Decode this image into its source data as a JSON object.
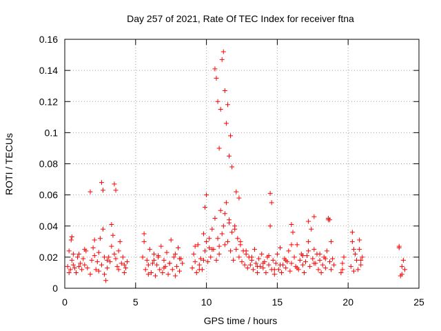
{
  "chart_data": {
    "type": "scatter",
    "title": "Day 257 of 2021, Rate Of TEC Index for receiver ftna",
    "xlabel": "GPS time / hours",
    "ylabel": "ROTI / TECUs",
    "xlim": [
      0,
      25
    ],
    "ylim": [
      0,
      0.16
    ],
    "xticks": [
      0,
      5,
      10,
      15,
      20,
      25
    ],
    "yticks": [
      0,
      0.02,
      0.04,
      0.06,
      0.08,
      0.1,
      0.12,
      0.14,
      0.16
    ],
    "xtick_labels": [
      "0",
      "5",
      "10",
      "15",
      "20",
      "25"
    ],
    "ytick_labels": [
      "0",
      "0.02",
      "0.04",
      "0.06",
      "0.08",
      "0.1",
      "0.12",
      "0.14",
      "0.16"
    ],
    "grid": true,
    "marker": "+",
    "marker_color": "#ff0000",
    "series": [
      {
        "x": [
          0.2,
          0.3,
          0.4,
          0.45,
          0.5,
          0.6,
          0.7,
          0.8,
          0.9,
          1.0,
          1.1,
          1.2,
          1.3,
          1.4,
          1.5,
          1.6,
          1.8,
          1.9,
          2.0,
          2.1,
          2.2,
          2.3,
          2.4,
          2.5,
          2.6,
          2.7,
          2.8,
          2.9,
          3.0,
          3.1,
          3.2,
          3.3,
          3.4,
          3.5,
          3.6,
          3.7,
          3.8,
          3.9,
          4.0,
          4.1,
          4.2,
          4.3,
          4.4,
          5.5,
          5.6,
          5.7,
          5.8,
          5.9,
          6.0,
          6.1,
          6.2,
          6.3,
          6.4,
          6.5,
          6.6,
          6.7,
          6.8,
          6.9,
          7.0,
          7.1,
          7.2,
          7.3,
          7.4,
          7.5,
          7.6,
          7.7,
          7.8,
          7.9,
          8.0,
          8.1,
          8.2,
          8.3,
          9.0,
          9.1,
          9.2,
          9.3,
          9.4,
          9.5,
          9.6,
          9.7,
          9.8,
          9.9,
          10.0,
          10.1,
          10.2,
          10.3,
          10.4,
          10.5,
          10.6,
          10.7,
          10.8,
          10.9,
          11.0,
          11.1,
          11.2,
          11.3,
          11.4,
          11.5,
          11.6,
          11.7,
          11.8,
          11.9,
          12.0,
          12.1,
          12.2,
          12.3,
          12.4,
          12.5,
          12.6,
          12.7,
          12.8,
          12.9,
          13.0,
          13.1,
          13.2,
          13.3,
          13.4,
          13.5,
          13.6,
          13.7,
          13.8,
          13.9,
          14.0,
          14.1,
          14.2,
          14.3,
          14.4,
          14.5,
          14.6,
          14.7,
          14.8,
          14.9,
          15.0,
          15.1,
          15.2,
          15.3,
          15.4,
          15.5,
          15.6,
          15.7,
          15.8,
          15.9,
          16.0,
          16.1,
          16.2,
          16.3,
          16.4,
          16.5,
          16.6,
          16.7,
          16.8,
          16.9,
          17.0,
          17.1,
          17.2,
          17.3,
          17.4,
          17.5,
          17.6,
          17.7,
          17.8,
          17.9,
          18.0,
          18.1,
          18.2,
          18.3,
          18.4,
          18.5,
          18.6,
          18.7,
          18.8,
          18.9,
          19.0,
          19.5,
          19.6,
          19.7,
          20.2,
          20.3,
          20.4,
          20.5,
          20.6,
          20.7,
          20.8,
          20.9,
          21.0,
          23.6,
          23.7,
          23.8,
          23.9,
          24.0,
          0.5,
          1.8,
          2.6,
          2.7,
          3.5,
          3.6,
          9.9,
          10.0,
          10.6,
          10.7,
          10.8,
          10.9,
          11.0,
          11.1,
          11.2,
          11.3,
          11.4,
          11.5,
          11.6,
          11.7,
          11.8,
          12.1,
          12.3,
          14.5,
          14.6,
          16.0,
          17.2,
          17.6,
          18.6,
          18.7,
          20.3,
          20.8,
          23.6,
          0.3,
          0.6,
          1.0,
          1.4,
          2.1,
          2.4,
          2.8,
          3.0,
          3.3,
          3.8,
          4.2,
          5.6,
          5.9,
          6.3,
          6.6,
          7.0,
          7.4,
          7.8,
          8.1,
          9.2,
          9.5,
          9.8,
          10.2,
          10.4,
          10.9,
          11.3,
          11.6,
          12.0,
          12.4,
          12.8,
          13.2,
          13.6,
          14.0,
          14.4,
          14.8,
          15.2,
          15.6,
          16.0,
          16.4,
          16.8,
          17.2,
          17.6,
          18.0,
          18.4,
          18.8,
          19.6,
          20.4,
          20.9,
          23.8
        ],
        "y": [
          0.014,
          0.024,
          0.012,
          0.031,
          0.018,
          0.015,
          0.013,
          0.01,
          0.02,
          0.022,
          0.016,
          0.012,
          0.019,
          0.015,
          0.024,
          0.013,
          0.009,
          0.018,
          0.026,
          0.021,
          0.012,
          0.017,
          0.023,
          0.032,
          0.015,
          0.038,
          0.009,
          0.005,
          0.013,
          0.02,
          0.017,
          0.027,
          0.034,
          0.022,
          0.019,
          0.014,
          0.012,
          0.03,
          0.016,
          0.02,
          0.01,
          0.013,
          0.017,
          0.02,
          0.035,
          0.012,
          0.018,
          0.015,
          0.025,
          0.01,
          0.016,
          0.022,
          0.008,
          0.015,
          0.02,
          0.012,
          0.027,
          0.01,
          0.018,
          0.014,
          0.023,
          0.009,
          0.016,
          0.031,
          0.012,
          0.02,
          0.008,
          0.014,
          0.026,
          0.011,
          0.019,
          0.016,
          0.013,
          0.022,
          0.017,
          0.01,
          0.028,
          0.015,
          0.019,
          0.012,
          0.035,
          0.024,
          0.03,
          0.017,
          0.026,
          0.02,
          0.038,
          0.025,
          0.045,
          0.018,
          0.032,
          0.022,
          0.05,
          0.035,
          0.04,
          0.028,
          0.055,
          0.03,
          0.044,
          0.024,
          0.036,
          0.018,
          0.04,
          0.025,
          0.032,
          0.02,
          0.028,
          0.017,
          0.024,
          0.015,
          0.022,
          0.013,
          0.02,
          0.015,
          0.018,
          0.012,
          0.025,
          0.016,
          0.01,
          0.019,
          0.014,
          0.022,
          0.013,
          0.017,
          0.01,
          0.02,
          0.015,
          0.04,
          0.012,
          0.018,
          0.009,
          0.016,
          0.022,
          0.012,
          0.026,
          0.01,
          0.015,
          0.019,
          0.013,
          0.017,
          0.024,
          0.011,
          0.016,
          0.036,
          0.02,
          0.014,
          0.028,
          0.012,
          0.018,
          0.022,
          0.015,
          0.01,
          0.017,
          0.021,
          0.03,
          0.014,
          0.038,
          0.019,
          0.025,
          0.016,
          0.022,
          0.012,
          0.018,
          0.01,
          0.015,
          0.02,
          0.013,
          0.024,
          0.044,
          0.017,
          0.012,
          0.019,
          0.015,
          0.01,
          0.016,
          0.02,
          0.014,
          0.03,
          0.011,
          0.022,
          0.018,
          0.012,
          0.025,
          0.015,
          0.02,
          0.026,
          0.008,
          0.014,
          0.018,
          0.012,
          0.033,
          0.062,
          0.068,
          0.063,
          0.067,
          0.063,
          0.052,
          0.06,
          0.141,
          0.135,
          0.12,
          0.09,
          0.115,
          0.147,
          0.152,
          0.127,
          0.106,
          0.118,
          0.085,
          0.098,
          0.078,
          0.062,
          0.058,
          0.061,
          0.055,
          0.041,
          0.043,
          0.046,
          0.045,
          0.044,
          0.036,
          0.031,
          0.027,
          0.01,
          0.022,
          0.014,
          0.025,
          0.031,
          0.011,
          0.02,
          0.018,
          0.041,
          0.024,
          0.015,
          0.03,
          0.009,
          0.018,
          0.021,
          0.013,
          0.016,
          0.022,
          0.019,
          0.027,
          0.012,
          0.018,
          0.032,
          0.025,
          0.027,
          0.048,
          0.042,
          0.038,
          0.03,
          0.024,
          0.02,
          0.014,
          0.016,
          0.021,
          0.012,
          0.015,
          0.018,
          0.028,
          0.013,
          0.021,
          0.024,
          0.016,
          0.022,
          0.019,
          0.03,
          0.012,
          0.025,
          0.018,
          0.009
        ]
      }
    ]
  }
}
